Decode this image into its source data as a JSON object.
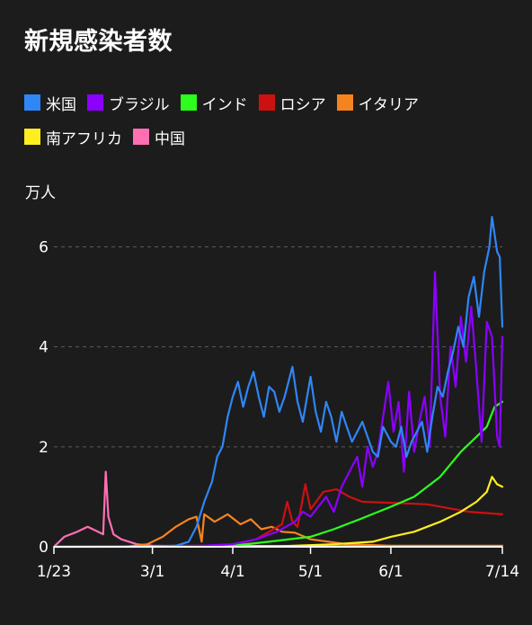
{
  "title": "新規感染者数",
  "legend_rows": [
    [
      {
        "name": "米国",
        "color": "#2f86f6"
      },
      {
        "name": "ブラジル",
        "color": "#8b00ff"
      },
      {
        "name": "インド",
        "color": "#2dff1c"
      },
      {
        "name": "ロシア",
        "color": "#cc1111"
      },
      {
        "name": "イタリア",
        "color": "#f5841f"
      }
    ],
    [
      {
        "name": "南アフリカ",
        "color": "#ffee20"
      },
      {
        "name": "中国",
        "color": "#ff6fb4"
      }
    ]
  ],
  "chart_data": {
    "type": "line",
    "ylabel": "万人",
    "ylim": [
      0,
      6.8
    ],
    "yticks": [
      0,
      2,
      4,
      6
    ],
    "ytick_labels": [
      "0",
      "2",
      "4",
      "6"
    ],
    "xlim": [
      "2020-01-23",
      "2020-07-14"
    ],
    "xticks": [
      "2020-01-23",
      "2020-03-01",
      "2020-04-01",
      "2020-05-01",
      "2020-06-01",
      "2020-07-14"
    ],
    "xtick_labels": [
      "1/23",
      "3/1",
      "4/1",
      "5/1",
      "6/1",
      "7/14"
    ],
    "grid": "horizontal dashed",
    "legend_position": "top",
    "series": [
      {
        "name": "米国",
        "color": "#2f86f6",
        "points": [
          [
            "2020-01-23",
            0
          ],
          [
            "2020-02-29",
            0
          ],
          [
            "2020-03-10",
            0.02
          ],
          [
            "2020-03-15",
            0.1
          ],
          [
            "2020-03-18",
            0.4
          ],
          [
            "2020-03-21",
            0.9
          ],
          [
            "2020-03-24",
            1.3
          ],
          [
            "2020-03-26",
            1.8
          ],
          [
            "2020-03-28",
            2.0
          ],
          [
            "2020-03-30",
            2.6
          ],
          [
            "2020-04-01",
            3.0
          ],
          [
            "2020-04-03",
            3.3
          ],
          [
            "2020-04-05",
            2.8
          ],
          [
            "2020-04-07",
            3.2
          ],
          [
            "2020-04-09",
            3.5
          ],
          [
            "2020-04-11",
            3.0
          ],
          [
            "2020-04-13",
            2.6
          ],
          [
            "2020-04-15",
            3.2
          ],
          [
            "2020-04-17",
            3.1
          ],
          [
            "2020-04-19",
            2.7
          ],
          [
            "2020-04-21",
            3.0
          ],
          [
            "2020-04-24",
            3.6
          ],
          [
            "2020-04-26",
            2.9
          ],
          [
            "2020-04-28",
            2.5
          ],
          [
            "2020-05-01",
            3.4
          ],
          [
            "2020-05-03",
            2.7
          ],
          [
            "2020-05-05",
            2.3
          ],
          [
            "2020-05-07",
            2.9
          ],
          [
            "2020-05-09",
            2.6
          ],
          [
            "2020-05-11",
            2.1
          ],
          [
            "2020-05-13",
            2.7
          ],
          [
            "2020-05-15",
            2.4
          ],
          [
            "2020-05-17",
            2.1
          ],
          [
            "2020-05-19",
            2.3
          ],
          [
            "2020-05-21",
            2.5
          ],
          [
            "2020-05-23",
            2.2
          ],
          [
            "2020-05-25",
            1.9
          ],
          [
            "2020-05-27",
            1.8
          ],
          [
            "2020-05-29",
            2.4
          ],
          [
            "2020-06-01",
            2.1
          ],
          [
            "2020-06-03",
            2.0
          ],
          [
            "2020-06-05",
            2.4
          ],
          [
            "2020-06-07",
            1.8
          ],
          [
            "2020-06-09",
            2.1
          ],
          [
            "2020-06-11",
            2.3
          ],
          [
            "2020-06-13",
            2.5
          ],
          [
            "2020-06-15",
            1.9
          ],
          [
            "2020-06-17",
            2.6
          ],
          [
            "2020-06-19",
            3.2
          ],
          [
            "2020-06-21",
            3.0
          ],
          [
            "2020-06-23",
            3.5
          ],
          [
            "2020-06-25",
            3.9
          ],
          [
            "2020-06-27",
            4.4
          ],
          [
            "2020-06-29",
            4.0
          ],
          [
            "2020-07-01",
            5.0
          ],
          [
            "2020-07-03",
            5.4
          ],
          [
            "2020-07-05",
            4.6
          ],
          [
            "2020-07-07",
            5.5
          ],
          [
            "2020-07-09",
            6.0
          ],
          [
            "2020-07-10",
            6.6
          ],
          [
            "2020-07-12",
            5.9
          ],
          [
            "2020-07-13",
            5.8
          ],
          [
            "2020-07-14",
            4.4
          ]
        ]
      },
      {
        "name": "ブラジル",
        "color": "#8b00ff",
        "points": [
          [
            "2020-03-01",
            0
          ],
          [
            "2020-03-20",
            0.02
          ],
          [
            "2020-04-01",
            0.05
          ],
          [
            "2020-04-10",
            0.15
          ],
          [
            "2020-04-18",
            0.3
          ],
          [
            "2020-04-25",
            0.5
          ],
          [
            "2020-04-28",
            0.7
          ],
          [
            "2020-05-01",
            0.6
          ],
          [
            "2020-05-04",
            0.8
          ],
          [
            "2020-05-07",
            1.0
          ],
          [
            "2020-05-10",
            0.7
          ],
          [
            "2020-05-13",
            1.2
          ],
          [
            "2020-05-16",
            1.5
          ],
          [
            "2020-05-19",
            1.8
          ],
          [
            "2020-05-21",
            1.2
          ],
          [
            "2020-05-23",
            2.0
          ],
          [
            "2020-05-25",
            1.6
          ],
          [
            "2020-05-27",
            1.9
          ],
          [
            "2020-05-29",
            2.6
          ],
          [
            "2020-05-31",
            3.3
          ],
          [
            "2020-06-02",
            2.3
          ],
          [
            "2020-06-04",
            2.9
          ],
          [
            "2020-06-06",
            1.5
          ],
          [
            "2020-06-08",
            3.1
          ],
          [
            "2020-06-10",
            1.9
          ],
          [
            "2020-06-12",
            2.5
          ],
          [
            "2020-06-14",
            3.0
          ],
          [
            "2020-06-16",
            2.0
          ],
          [
            "2020-06-18",
            5.5
          ],
          [
            "2020-06-20",
            3.0
          ],
          [
            "2020-06-22",
            2.2
          ],
          [
            "2020-06-24",
            4.0
          ],
          [
            "2020-06-26",
            3.2
          ],
          [
            "2020-06-28",
            4.6
          ],
          [
            "2020-06-30",
            3.7
          ],
          [
            "2020-07-02",
            4.8
          ],
          [
            "2020-07-04",
            3.5
          ],
          [
            "2020-07-06",
            2.1
          ],
          [
            "2020-07-08",
            4.5
          ],
          [
            "2020-07-10",
            4.2
          ],
          [
            "2020-07-12",
            2.2
          ],
          [
            "2020-07-13",
            2.0
          ],
          [
            "2020-07-14",
            4.2
          ]
        ]
      },
      {
        "name": "インド",
        "color": "#2dff1c",
        "points": [
          [
            "2020-03-01",
            0
          ],
          [
            "2020-04-01",
            0.02
          ],
          [
            "2020-04-15",
            0.1
          ],
          [
            "2020-05-01",
            0.2
          ],
          [
            "2020-05-10",
            0.35
          ],
          [
            "2020-05-20",
            0.55
          ],
          [
            "2020-06-01",
            0.8
          ],
          [
            "2020-06-10",
            1.0
          ],
          [
            "2020-06-20",
            1.4
          ],
          [
            "2020-06-28",
            1.9
          ],
          [
            "2020-07-04",
            2.2
          ],
          [
            "2020-07-08",
            2.4
          ],
          [
            "2020-07-11",
            2.8
          ],
          [
            "2020-07-14",
            2.9
          ]
        ]
      },
      {
        "name": "ロシア",
        "color": "#cc1111",
        "points": [
          [
            "2020-03-01",
            0
          ],
          [
            "2020-03-31",
            0.02
          ],
          [
            "2020-04-10",
            0.15
          ],
          [
            "2020-04-20",
            0.45
          ],
          [
            "2020-04-22",
            0.9
          ],
          [
            "2020-04-24",
            0.5
          ],
          [
            "2020-04-26",
            0.4
          ],
          [
            "2020-04-29",
            1.25
          ],
          [
            "2020-05-01",
            0.75
          ],
          [
            "2020-05-06",
            1.1
          ],
          [
            "2020-05-11",
            1.15
          ],
          [
            "2020-05-16",
            1.0
          ],
          [
            "2020-05-21",
            0.9
          ],
          [
            "2020-06-01",
            0.88
          ],
          [
            "2020-06-15",
            0.85
          ],
          [
            "2020-07-01",
            0.7
          ],
          [
            "2020-07-14",
            0.65
          ]
        ]
      },
      {
        "name": "イタリア",
        "color": "#f5841f",
        "points": [
          [
            "2020-02-20",
            0
          ],
          [
            "2020-02-28",
            0.05
          ],
          [
            "2020-03-05",
            0.2
          ],
          [
            "2020-03-10",
            0.4
          ],
          [
            "2020-03-15",
            0.55
          ],
          [
            "2020-03-18",
            0.6
          ],
          [
            "2020-03-20",
            0.1
          ],
          [
            "2020-03-21",
            0.65
          ],
          [
            "2020-03-25",
            0.5
          ],
          [
            "2020-03-30",
            0.65
          ],
          [
            "2020-04-04",
            0.45
          ],
          [
            "2020-04-08",
            0.55
          ],
          [
            "2020-04-12",
            0.35
          ],
          [
            "2020-04-16",
            0.4
          ],
          [
            "2020-04-20",
            0.3
          ],
          [
            "2020-04-25",
            0.28
          ],
          [
            "2020-05-01",
            0.15
          ],
          [
            "2020-05-15",
            0.05
          ],
          [
            "2020-06-01",
            0.02
          ],
          [
            "2020-07-14",
            0.02
          ]
        ]
      },
      {
        "name": "南アフリカ",
        "color": "#ffee20",
        "points": [
          [
            "2020-01-23",
            0
          ],
          [
            "2020-04-20",
            0.01
          ],
          [
            "2020-05-10",
            0.05
          ],
          [
            "2020-05-25",
            0.1
          ],
          [
            "2020-06-01",
            0.2
          ],
          [
            "2020-06-10",
            0.3
          ],
          [
            "2020-06-20",
            0.5
          ],
          [
            "2020-06-28",
            0.7
          ],
          [
            "2020-07-04",
            0.9
          ],
          [
            "2020-07-08",
            1.1
          ],
          [
            "2020-07-10",
            1.4
          ],
          [
            "2020-07-12",
            1.25
          ],
          [
            "2020-07-14",
            1.2
          ]
        ]
      },
      {
        "name": "中国",
        "color": "#ff6fb4",
        "points": [
          [
            "2020-01-23",
            0
          ],
          [
            "2020-01-27",
            0.2
          ],
          [
            "2020-02-01",
            0.3
          ],
          [
            "2020-02-05",
            0.4
          ],
          [
            "2020-02-09",
            0.3
          ],
          [
            "2020-02-11",
            0.25
          ],
          [
            "2020-02-12",
            1.5
          ],
          [
            "2020-02-13",
            0.6
          ],
          [
            "2020-02-15",
            0.25
          ],
          [
            "2020-02-18",
            0.15
          ],
          [
            "2020-02-24",
            0.05
          ],
          [
            "2020-03-01",
            0.02
          ],
          [
            "2020-07-14",
            0.01
          ]
        ]
      }
    ]
  }
}
